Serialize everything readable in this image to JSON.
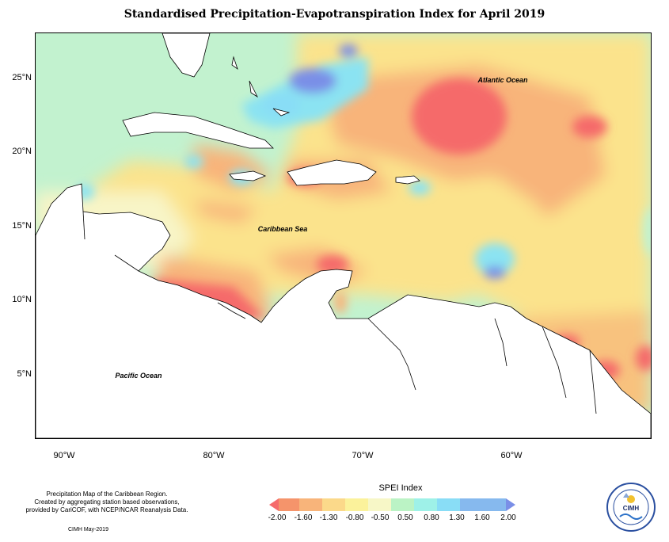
{
  "title": "Standardised Precipitation-Evapotranspiration Index for April 2019",
  "map": {
    "region": "Caribbean",
    "ocean_labels": {
      "atlantic": "Atlantic Ocean",
      "caribbean": "Caribbean Sea",
      "pacific": "Pacific Ocean"
    },
    "latitude_labels": [
      "25°N",
      "20°N",
      "15°N",
      "10°N",
      "5°N"
    ],
    "longitude_labels": [
      "90°W",
      "80°W",
      "70°W",
      "60°W"
    ]
  },
  "legend": {
    "title": "SPEI Index",
    "tick_labels": [
      "-2.00",
      "-1.60",
      "-1.30",
      "-0.80",
      "-0.50",
      "0.50",
      "0.80",
      "1.30",
      "1.60",
      "2.00"
    ],
    "colors": [
      "#f56b6b",
      "#f5946b",
      "#f8b47a",
      "#fbd98a",
      "#fbf29b",
      "#f7f7c7",
      "#bbf3c5",
      "#9ef1e8",
      "#89ddf6",
      "#86b9ee",
      "#7a8fe7"
    ]
  },
  "footer": {
    "line1": "Precipitation Map of the Caribbean Region.",
    "line2": "Created by aggregating station based observations,",
    "line3": "provided by CariCOF, with NCEP/NCAR Reanalysis Data.",
    "credit": "CIMH May-2019"
  },
  "logo": {
    "text": "CIMH"
  },
  "colors": {
    "dry_extreme": "#f56b6b",
    "dry_moderate": "#f8b47a",
    "dry_mild": "#fbe58f",
    "near_normal": "#f5f7c9",
    "wet_mild": "#b8f2d0",
    "wet_moderate": "#8be3f2",
    "wet_severe": "#7a8fe7"
  }
}
